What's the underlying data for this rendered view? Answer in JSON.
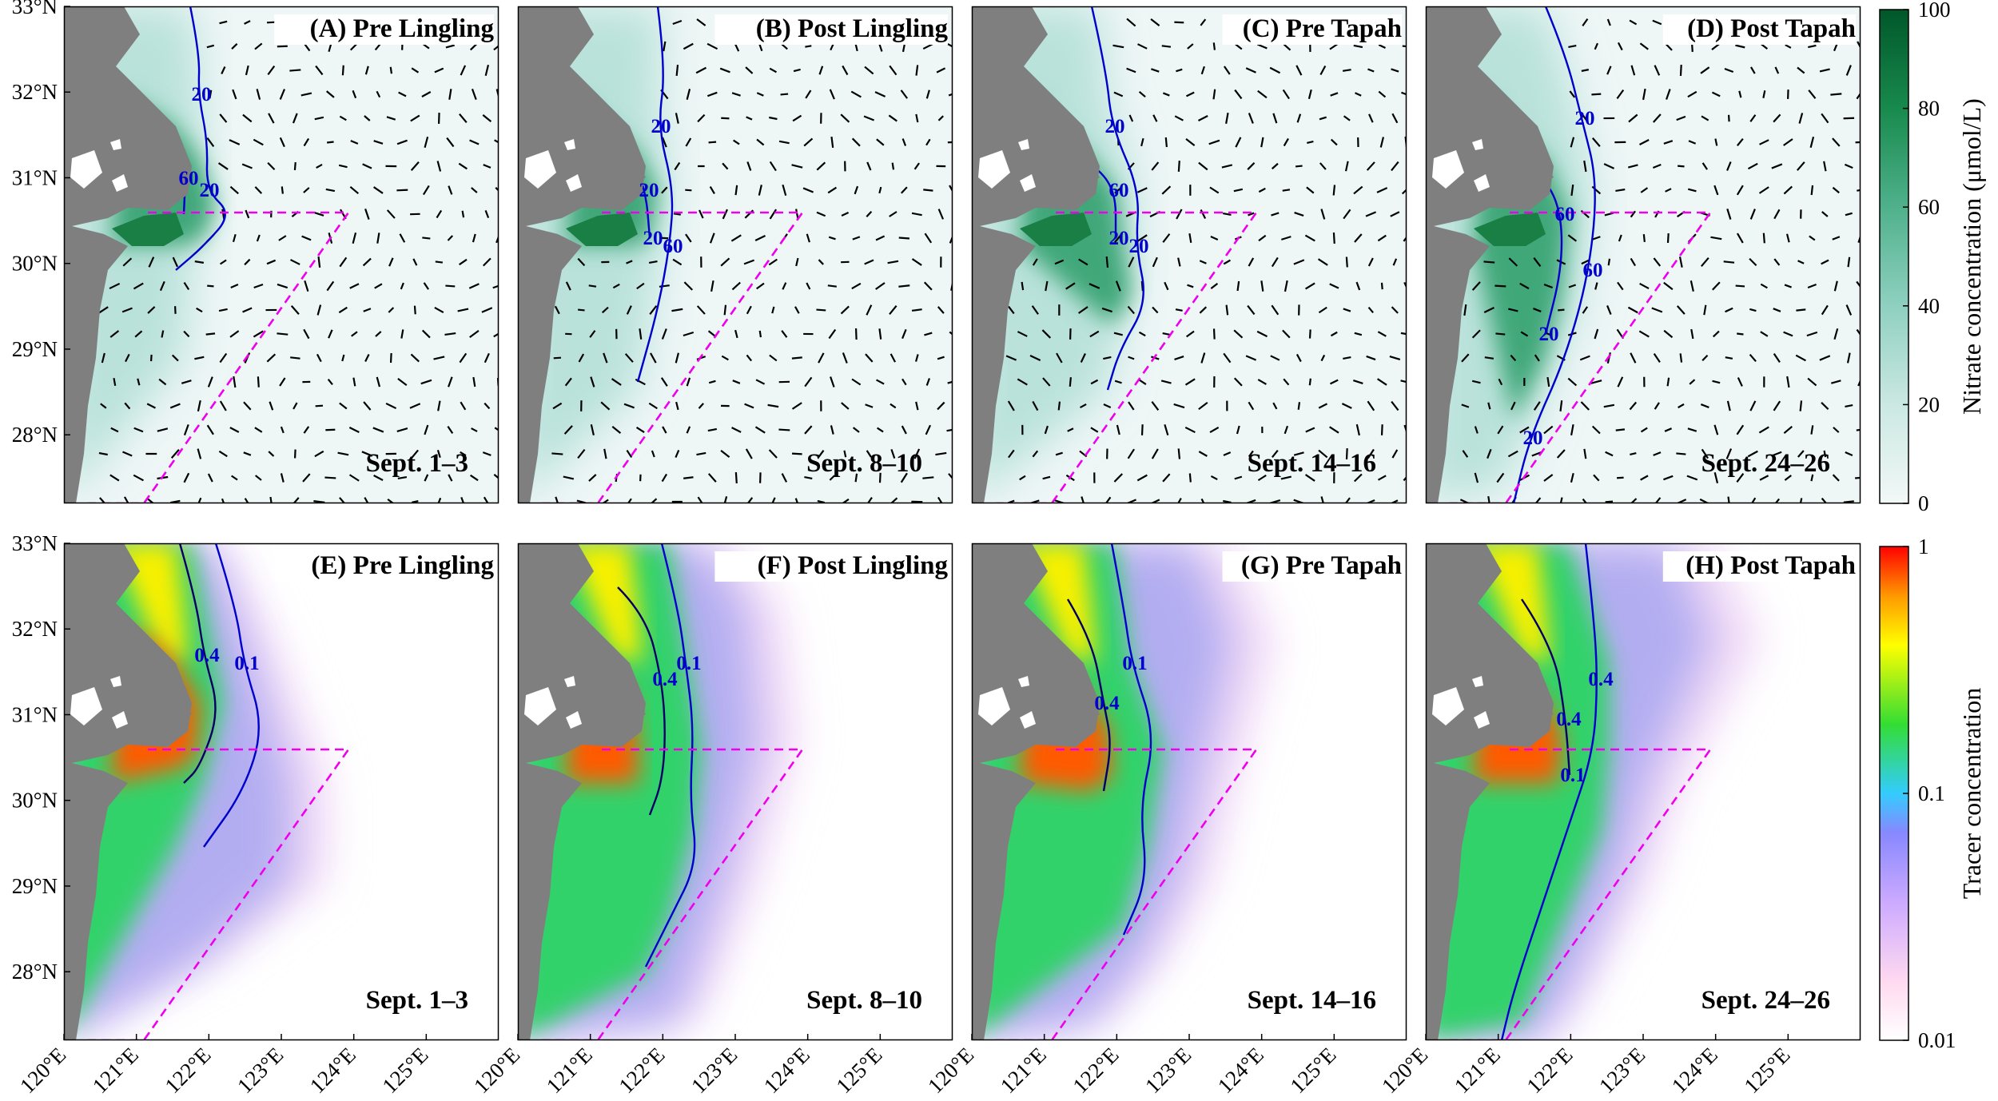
{
  "rows": [
    {
      "variable": "nitrate",
      "panels": [
        {
          "title": "(A) Pre Lingling",
          "date": "Sept. 1–3",
          "contours": [
            "20",
            "60",
            "20"
          ]
        },
        {
          "title": "(B) Post Lingling",
          "date": "Sept. 8–10",
          "contours": [
            "20",
            "20",
            "60",
            "20"
          ]
        },
        {
          "title": "(C) Pre Tapah",
          "date": "Sept. 14–16",
          "contours": [
            "20",
            "60",
            "20",
            "20"
          ]
        },
        {
          "title": "(D) Post Tapah",
          "date": "Sept. 24–26",
          "contours": [
            "20",
            "60",
            "60",
            "20",
            "20"
          ]
        }
      ],
      "colorbar": {
        "label": "Nitrate concentration (μmol/L)",
        "ticks": [
          "100",
          "80",
          "60",
          "40",
          "20",
          "0"
        ],
        "tick_values": [
          100,
          80,
          60,
          40,
          20,
          0
        ],
        "range": [
          0,
          100
        ],
        "scale": "linear",
        "colors": [
          "#f2f8f7",
          "#cbe8e2",
          "#8fd0c0",
          "#4fb18c",
          "#188a4d",
          "#00572a"
        ]
      }
    },
    {
      "variable": "tracer",
      "panels": [
        {
          "title": "(E) Pre Lingling",
          "date": "Sept. 1–3",
          "contours": [
            "0.4",
            "0.1"
          ]
        },
        {
          "title": "(F) Post Lingling",
          "date": "Sept. 8–10",
          "contours": [
            "0.4",
            "0.1"
          ]
        },
        {
          "title": "(G) Pre Tapah",
          "date": "Sept. 14–16",
          "contours": [
            "0.4",
            "0.1"
          ]
        },
        {
          "title": "(H) Post Tapah",
          "date": "Sept. 24–26",
          "contours": [
            "0.4",
            "0.4",
            "0.1"
          ]
        }
      ],
      "colorbar": {
        "label": "Tracer concentration",
        "ticks": [
          "1",
          "0.1",
          "0.01"
        ],
        "tick_values": [
          1,
          0.1,
          0.01
        ],
        "range": [
          0.01,
          1
        ],
        "scale": "log",
        "colors": [
          "#ff0000",
          "#ff9900",
          "#ffff00",
          "#33dd33",
          "#33ccff",
          "#8888ff",
          "#ccaaff",
          "#ffd9f0",
          "#ffffff"
        ]
      }
    }
  ],
  "axes": {
    "lat_ticks": [
      "33°N",
      "32°N",
      "31°N",
      "30°N",
      "29°N",
      "28°N"
    ],
    "lat_values": [
      33,
      32,
      31,
      30,
      29,
      28
    ],
    "lon_ticks": [
      "120°E",
      "121°E",
      "122°E",
      "123°E",
      "124°E",
      "125°E"
    ],
    "lon_values": [
      120,
      121,
      122,
      123,
      124,
      125
    ],
    "lon_range": [
      120,
      126
    ],
    "lat_range": [
      27.2,
      33
    ]
  },
  "colors": {
    "land": "#7f7f7f",
    "contour": "#0000cc",
    "box": "#ee00ee",
    "frame": "#000000"
  }
}
